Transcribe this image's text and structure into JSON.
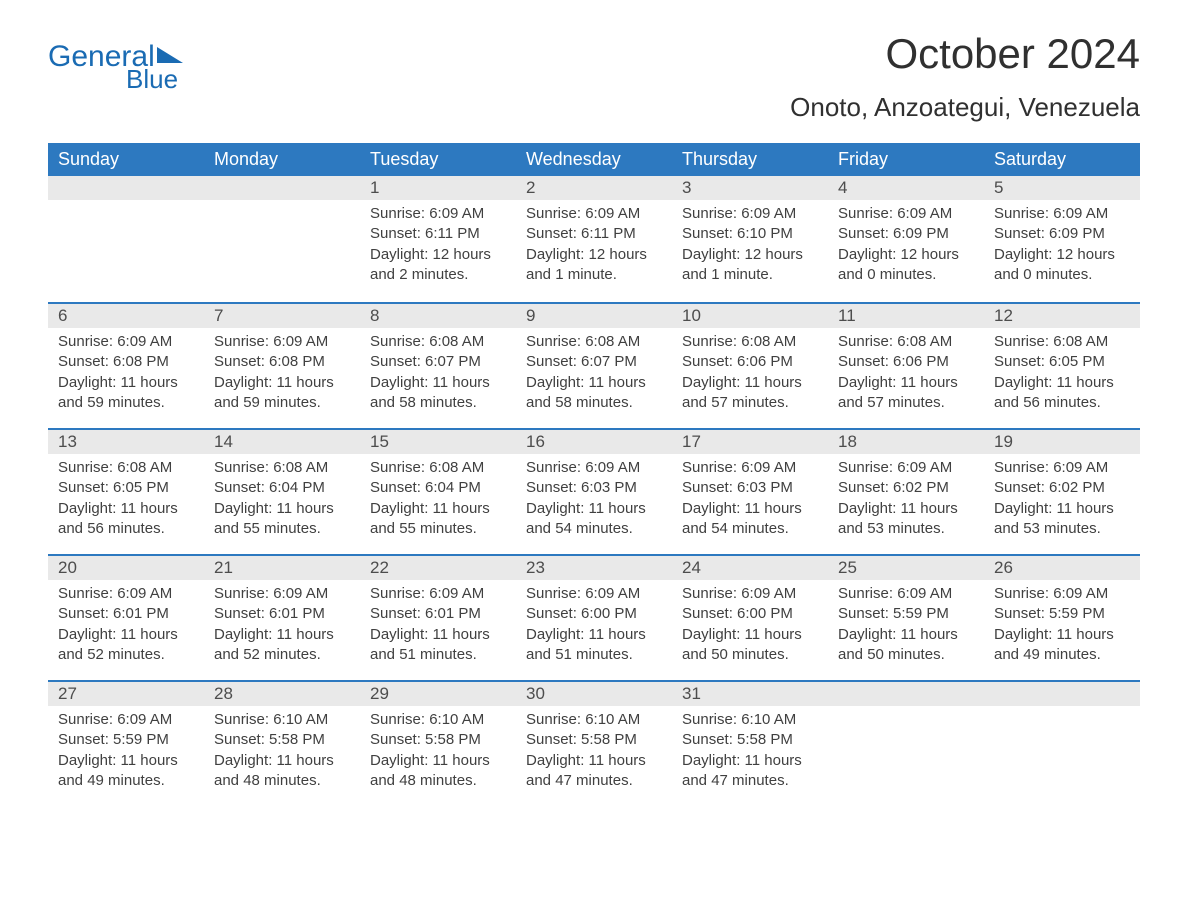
{
  "logo": {
    "general": "General",
    "blue": "Blue",
    "accent_color": "#1a6bb3"
  },
  "title": "October 2024",
  "location": "Onoto, Anzoategui, Venezuela",
  "colors": {
    "header_bg": "#2d79c0",
    "header_text": "#ffffff",
    "cell_stripe": "#e9e9e9",
    "rule": "#2d79c0",
    "text": "#404040",
    "background": "#ffffff"
  },
  "day_names": [
    "Sunday",
    "Monday",
    "Tuesday",
    "Wednesday",
    "Thursday",
    "Friday",
    "Saturday"
  ],
  "label_sunrise": "Sunrise:",
  "label_sunset": "Sunset:",
  "label_daylight": "Daylight:",
  "weeks": [
    [
      null,
      null,
      {
        "n": "1",
        "sunrise": "6:09 AM",
        "sunset": "6:11 PM",
        "daylight": "12 hours and 2 minutes."
      },
      {
        "n": "2",
        "sunrise": "6:09 AM",
        "sunset": "6:11 PM",
        "daylight": "12 hours and 1 minute."
      },
      {
        "n": "3",
        "sunrise": "6:09 AM",
        "sunset": "6:10 PM",
        "daylight": "12 hours and 1 minute."
      },
      {
        "n": "4",
        "sunrise": "6:09 AM",
        "sunset": "6:09 PM",
        "daylight": "12 hours and 0 minutes."
      },
      {
        "n": "5",
        "sunrise": "6:09 AM",
        "sunset": "6:09 PM",
        "daylight": "12 hours and 0 minutes."
      }
    ],
    [
      {
        "n": "6",
        "sunrise": "6:09 AM",
        "sunset": "6:08 PM",
        "daylight": "11 hours and 59 minutes."
      },
      {
        "n": "7",
        "sunrise": "6:09 AM",
        "sunset": "6:08 PM",
        "daylight": "11 hours and 59 minutes."
      },
      {
        "n": "8",
        "sunrise": "6:08 AM",
        "sunset": "6:07 PM",
        "daylight": "11 hours and 58 minutes."
      },
      {
        "n": "9",
        "sunrise": "6:08 AM",
        "sunset": "6:07 PM",
        "daylight": "11 hours and 58 minutes."
      },
      {
        "n": "10",
        "sunrise": "6:08 AM",
        "sunset": "6:06 PM",
        "daylight": "11 hours and 57 minutes."
      },
      {
        "n": "11",
        "sunrise": "6:08 AM",
        "sunset": "6:06 PM",
        "daylight": "11 hours and 57 minutes."
      },
      {
        "n": "12",
        "sunrise": "6:08 AM",
        "sunset": "6:05 PM",
        "daylight": "11 hours and 56 minutes."
      }
    ],
    [
      {
        "n": "13",
        "sunrise": "6:08 AM",
        "sunset": "6:05 PM",
        "daylight": "11 hours and 56 minutes."
      },
      {
        "n": "14",
        "sunrise": "6:08 AM",
        "sunset": "6:04 PM",
        "daylight": "11 hours and 55 minutes."
      },
      {
        "n": "15",
        "sunrise": "6:08 AM",
        "sunset": "6:04 PM",
        "daylight": "11 hours and 55 minutes."
      },
      {
        "n": "16",
        "sunrise": "6:09 AM",
        "sunset": "6:03 PM",
        "daylight": "11 hours and 54 minutes."
      },
      {
        "n": "17",
        "sunrise": "6:09 AM",
        "sunset": "6:03 PM",
        "daylight": "11 hours and 54 minutes."
      },
      {
        "n": "18",
        "sunrise": "6:09 AM",
        "sunset": "6:02 PM",
        "daylight": "11 hours and 53 minutes."
      },
      {
        "n": "19",
        "sunrise": "6:09 AM",
        "sunset": "6:02 PM",
        "daylight": "11 hours and 53 minutes."
      }
    ],
    [
      {
        "n": "20",
        "sunrise": "6:09 AM",
        "sunset": "6:01 PM",
        "daylight": "11 hours and 52 minutes."
      },
      {
        "n": "21",
        "sunrise": "6:09 AM",
        "sunset": "6:01 PM",
        "daylight": "11 hours and 52 minutes."
      },
      {
        "n": "22",
        "sunrise": "6:09 AM",
        "sunset": "6:01 PM",
        "daylight": "11 hours and 51 minutes."
      },
      {
        "n": "23",
        "sunrise": "6:09 AM",
        "sunset": "6:00 PM",
        "daylight": "11 hours and 51 minutes."
      },
      {
        "n": "24",
        "sunrise": "6:09 AM",
        "sunset": "6:00 PM",
        "daylight": "11 hours and 50 minutes."
      },
      {
        "n": "25",
        "sunrise": "6:09 AM",
        "sunset": "5:59 PM",
        "daylight": "11 hours and 50 minutes."
      },
      {
        "n": "26",
        "sunrise": "6:09 AM",
        "sunset": "5:59 PM",
        "daylight": "11 hours and 49 minutes."
      }
    ],
    [
      {
        "n": "27",
        "sunrise": "6:09 AM",
        "sunset": "5:59 PM",
        "daylight": "11 hours and 49 minutes."
      },
      {
        "n": "28",
        "sunrise": "6:10 AM",
        "sunset": "5:58 PM",
        "daylight": "11 hours and 48 minutes."
      },
      {
        "n": "29",
        "sunrise": "6:10 AM",
        "sunset": "5:58 PM",
        "daylight": "11 hours and 48 minutes."
      },
      {
        "n": "30",
        "sunrise": "6:10 AM",
        "sunset": "5:58 PM",
        "daylight": "11 hours and 47 minutes."
      },
      {
        "n": "31",
        "sunrise": "6:10 AM",
        "sunset": "5:58 PM",
        "daylight": "11 hours and 47 minutes."
      },
      null,
      null
    ]
  ]
}
